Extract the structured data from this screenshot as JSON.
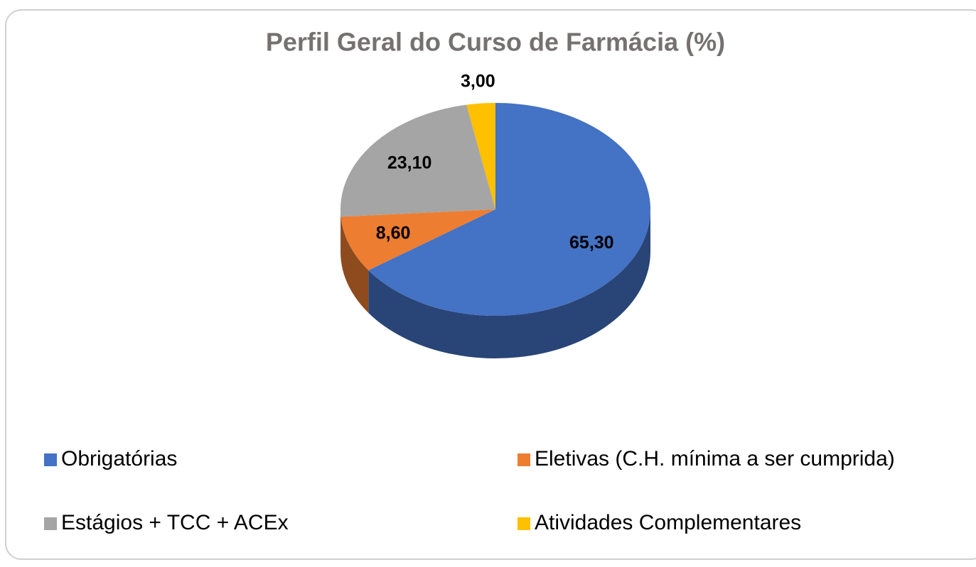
{
  "chart_data": {
    "type": "pie",
    "title": "Perfil Geral do Curso de Farmácia (%)",
    "categories": [
      "Obrigatórias",
      "Eletivas (C.H. mínima a ser cumprida)",
      "Estágios + TCC + ACEx",
      "Atividades Complementares"
    ],
    "values": [
      65.3,
      8.6,
      23.1,
      3.0
    ],
    "value_labels": [
      "65,30",
      "8,60",
      "23,10",
      "3,00"
    ],
    "colors": [
      "#4472c4",
      "#ed7d31",
      "#a5a5a5",
      "#ffc000"
    ],
    "legend": "bottom"
  }
}
